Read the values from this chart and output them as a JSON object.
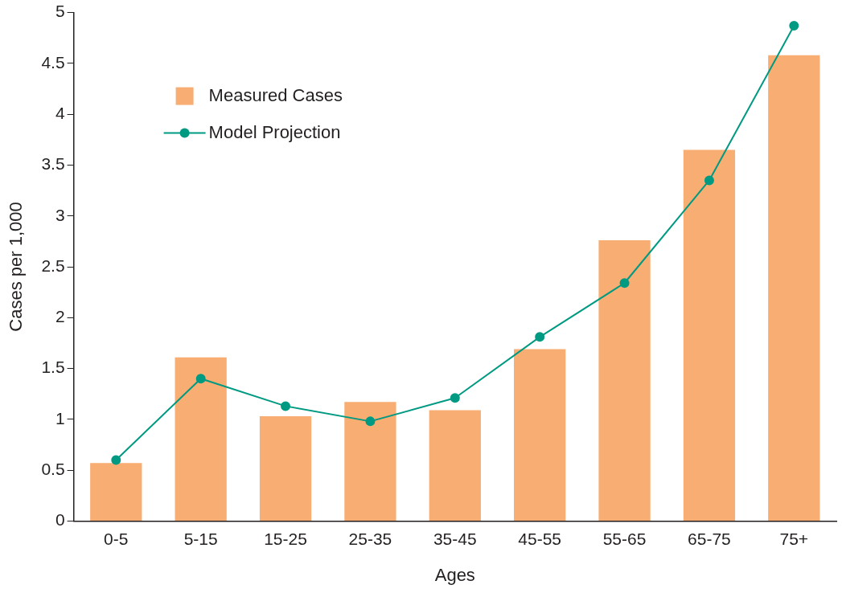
{
  "chart_data": {
    "type": "bar",
    "xlabel": "Ages",
    "ylabel": "Cases per 1,000",
    "categories": [
      "0-5",
      "5-15",
      "15-25",
      "25-35",
      "35-45",
      "45-55",
      "55-65",
      "65-75",
      "75+"
    ],
    "series": [
      {
        "name": "Measured Cases",
        "color": "#f8ad72",
        "values": [
          0.57,
          1.61,
          1.03,
          1.17,
          1.09,
          1.69,
          2.76,
          3.65,
          4.58
        ]
      },
      {
        "name": "Model Projection",
        "type": "line",
        "color": "#009a82",
        "values": [
          0.6,
          1.4,
          1.13,
          0.98,
          1.21,
          1.81,
          2.34,
          3.35,
          4.87
        ]
      }
    ],
    "ylim": [
      0,
      5
    ],
    "yticks": [
      0,
      0.5,
      1,
      1.5,
      2,
      2.5,
      3,
      3.5,
      4,
      4.5,
      5
    ],
    "grid": false,
    "legend": "top left",
    "marker": "circle",
    "line_style": "solid"
  }
}
